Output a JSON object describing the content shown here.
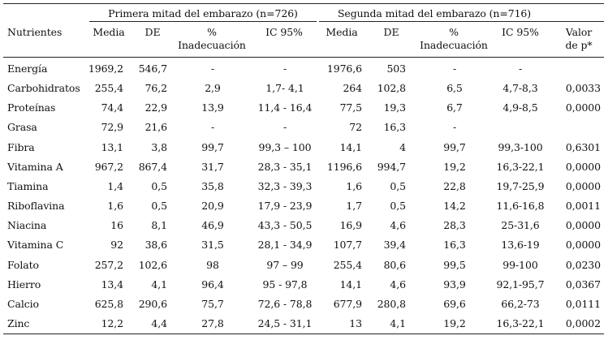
{
  "header": {
    "group1": "Primera mitad del embarazo (n=726)",
    "group2": "Segunda mitad del embarazo (n=716)",
    "col_nutrientes": "Nutrientes",
    "col_media": "Media",
    "col_de": "DE",
    "col_pct_line1": "%",
    "col_pct_line2": "Inadecuación",
    "col_ic": "IC 95%",
    "col_media2": "Media",
    "col_de2": "DE",
    "col_pct2_line1": "%",
    "col_pct2_line2": "Inadecuación",
    "col_ic2": "IC 95%",
    "col_p_line1": "Valor",
    "col_p_line2": "de p*"
  },
  "rows": [
    {
      "n": "Energía",
      "m1": "1969,2",
      "de1": "546,7",
      "pct1": "-",
      "ic1": "-",
      "m2": "1976,6",
      "de2": "503",
      "pct2": "-",
      "ic2": "-",
      "p": ""
    },
    {
      "n": "Carbohidratos",
      "m1": "255,4",
      "de1": "76,2",
      "pct1": "2,9",
      "ic1": "1,7- 4,1",
      "m2": "264",
      "de2": "102,8",
      "pct2": "6,5",
      "ic2": "4,7-8,3",
      "p": "0,0033"
    },
    {
      "n": "Proteínas",
      "m1": "74,4",
      "de1": "22,9",
      "pct1": "13,9",
      "ic1": "11,4 - 16,4",
      "m2": "77,5",
      "de2": "19,3",
      "pct2": "6,7",
      "ic2": "4,9-8,5",
      "p": "0,0000"
    },
    {
      "n": "Grasa",
      "m1": "72,9",
      "de1": "21,6",
      "pct1": "-",
      "ic1": "-",
      "m2": "72",
      "de2": "16,3",
      "pct2": "-",
      "ic2": "",
      "p": ""
    },
    {
      "n": "Fibra",
      "m1": "13,1",
      "de1": "3,8",
      "pct1": "99,7",
      "ic1": "99,3 – 100",
      "m2": "14,1",
      "de2": "4",
      "pct2": "99,7",
      "ic2": "99,3-100",
      "p": "0,6301"
    },
    {
      "n": "Vitamina A",
      "m1": "967,2",
      "de1": "867,4",
      "pct1": "31,7",
      "ic1": "28,3 - 35,1",
      "m2": "1196,6",
      "de2": "994,7",
      "pct2": "19,2",
      "ic2": "16,3-22,1",
      "p": "0,0000"
    },
    {
      "n": "Tiamina",
      "m1": "1,4",
      "de1": "0,5",
      "pct1": "35,8",
      "ic1": "32,3 - 39,3",
      "m2": "1,6",
      "de2": "0,5",
      "pct2": "22,8",
      "ic2": "19,7-25,9",
      "p": "0,0000"
    },
    {
      "n": "Riboflavina",
      "m1": "1,6",
      "de1": "0,5",
      "pct1": "20,9",
      "ic1": "17,9 - 23,9",
      "m2": "1,7",
      "de2": "0,5",
      "pct2": "14,2",
      "ic2": "11,6-16,8",
      "p": "0,0011"
    },
    {
      "n": "Niacina",
      "m1": "16",
      "de1": "8,1",
      "pct1": "46,9",
      "ic1": "43,3 - 50,5",
      "m2": "16,9",
      "de2": "4,6",
      "pct2": "28,3",
      "ic2": "25-31,6",
      "p": "0,0000"
    },
    {
      "n": "Vitamina C",
      "m1": "92",
      "de1": "38,6",
      "pct1": "31,5",
      "ic1": "28,1 - 34,9",
      "m2": "107,7",
      "de2": "39,4",
      "pct2": "16,3",
      "ic2": "13,6-19",
      "p": "0,0000"
    },
    {
      "n": "Folato",
      "m1": "257,2",
      "de1": "102,6",
      "pct1": "98",
      "ic1": "97 – 99",
      "m2": "255,4",
      "de2": "80,6",
      "pct2": "99,5",
      "ic2": "99-100",
      "p": "0,0230"
    },
    {
      "n": "Hierro",
      "m1": "13,4",
      "de1": "4,1",
      "pct1": "96,4",
      "ic1": "95 - 97,8",
      "m2": "14,1",
      "de2": "4,6",
      "pct2": "93,9",
      "ic2": "92,1-95,7",
      "p": "0,0367"
    },
    {
      "n": "Calcio",
      "m1": "625,8",
      "de1": "290,6",
      "pct1": "75,7",
      "ic1": "72,6 - 78,8",
      "m2": "677,9",
      "de2": "280,8",
      "pct2": "69,6",
      "ic2": "66,2-73",
      "p": "0,0111"
    },
    {
      "n": "Zinc",
      "m1": "12,2",
      "de1": "4,4",
      "pct1": "27,8",
      "ic1": "24,5 - 31,1",
      "m2": "13",
      "de2": "4,1",
      "pct2": "19,2",
      "ic2": "16,3-22,1",
      "p": "0,0002"
    }
  ]
}
